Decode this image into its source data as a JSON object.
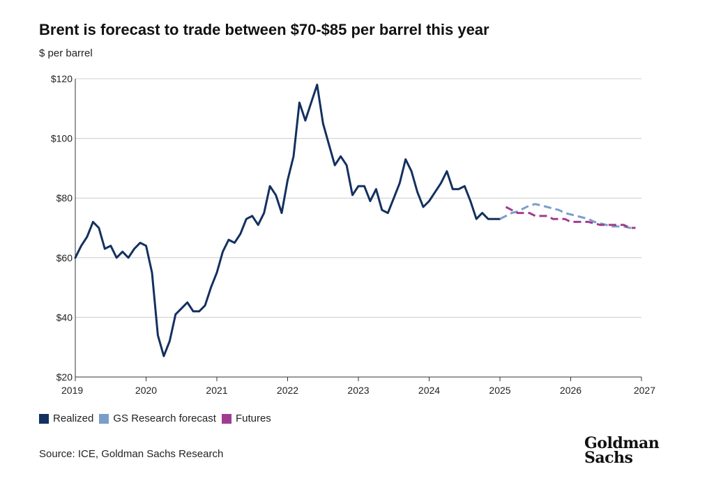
{
  "header": {
    "title": "Brent is forecast to trade between $70-$85 per barrel this year",
    "unit_label": "$ per barrel"
  },
  "footer": {
    "source": "Source: ICE, Goldman Sachs Research",
    "logo_line1": "Goldman",
    "logo_line2": "Sachs"
  },
  "colors": {
    "realized": "#13305f",
    "forecast": "#7b9dc9",
    "futures": "#a03c8f",
    "grid": "#cccccc",
    "axis": "#333333"
  },
  "chart_data": {
    "type": "line",
    "title": "Brent is forecast to trade between $70-$85 per barrel this year",
    "ylabel": "$ per barrel",
    "xlim": [
      2019,
      2027
    ],
    "ylim": [
      20,
      120
    ],
    "x_ticks": [
      2019,
      2020,
      2021,
      2022,
      2023,
      2024,
      2025,
      2026,
      2027
    ],
    "x_tick_labels": [
      "2019",
      "2020",
      "2021",
      "2022",
      "2023",
      "2024",
      "2025",
      "2026",
      "2027"
    ],
    "y_ticks": [
      20,
      40,
      60,
      80,
      100,
      120
    ],
    "y_tick_labels": [
      "$20",
      "$40",
      "$60",
      "$80",
      "$100",
      "$120"
    ],
    "grid": "horizontal",
    "legend": "bottom-left",
    "series": [
      {
        "name": "Realized",
        "style": "solid",
        "color": "#13305f",
        "x": [
          "2019-01",
          "2019-02",
          "2019-03",
          "2019-04",
          "2019-05",
          "2019-06",
          "2019-07",
          "2019-08",
          "2019-09",
          "2019-10",
          "2019-11",
          "2019-12",
          "2020-01",
          "2020-02",
          "2020-03",
          "2020-04",
          "2020-05",
          "2020-06",
          "2020-07",
          "2020-08",
          "2020-09",
          "2020-10",
          "2020-11",
          "2020-12",
          "2021-01",
          "2021-02",
          "2021-03",
          "2021-04",
          "2021-05",
          "2021-06",
          "2021-07",
          "2021-08",
          "2021-09",
          "2021-10",
          "2021-11",
          "2021-12",
          "2022-01",
          "2022-02",
          "2022-03",
          "2022-04",
          "2022-05",
          "2022-06",
          "2022-07",
          "2022-08",
          "2022-09",
          "2022-10",
          "2022-11",
          "2022-12",
          "2023-01",
          "2023-02",
          "2023-03",
          "2023-04",
          "2023-05",
          "2023-06",
          "2023-07",
          "2023-08",
          "2023-09",
          "2023-10",
          "2023-11",
          "2023-12",
          "2024-01",
          "2024-02",
          "2024-03",
          "2024-04",
          "2024-05",
          "2024-06",
          "2024-07",
          "2024-08",
          "2024-09",
          "2024-10",
          "2024-11",
          "2024-12",
          "2025-01"
        ],
        "values": [
          60,
          64,
          67,
          72,
          70,
          63,
          64,
          60,
          62,
          60,
          63,
          65,
          64,
          55,
          34,
          27,
          32,
          41,
          43,
          45,
          42,
          42,
          44,
          50,
          55,
          62,
          66,
          65,
          68,
          73,
          74,
          71,
          75,
          84,
          81,
          75,
          86,
          94,
          112,
          106,
          112,
          118,
          105,
          98,
          91,
          94,
          91,
          81,
          84,
          84,
          79,
          83,
          76,
          75,
          80,
          85,
          93,
          89,
          82,
          77,
          79,
          82,
          85,
          89,
          83,
          83,
          84,
          79,
          73,
          75,
          73,
          73,
          73
        ]
      },
      {
        "name": "GS Research forecast",
        "style": "dashed",
        "color": "#7b9dc9",
        "x": [
          "2025-01",
          "2025-02",
          "2025-03",
          "2025-04",
          "2025-05",
          "2025-06",
          "2025-07",
          "2025-08",
          "2025-09",
          "2025-10",
          "2025-11",
          "2025-12",
          "2026-01",
          "2026-02",
          "2026-03",
          "2026-04",
          "2026-05",
          "2026-06",
          "2026-07",
          "2026-08",
          "2026-09",
          "2026-10",
          "2026-11",
          "2026-12"
        ],
        "values": [
          73,
          74,
          75,
          75.5,
          76.5,
          77.5,
          78,
          77.5,
          77,
          76.5,
          76,
          75,
          74.5,
          74,
          73.5,
          73,
          72,
          71.5,
          71,
          70.5,
          70.5,
          70.5,
          70,
          70
        ]
      },
      {
        "name": "Futures",
        "style": "dashed",
        "color": "#a03c8f",
        "x": [
          "2025-02",
          "2025-03",
          "2025-04",
          "2025-05",
          "2025-06",
          "2025-07",
          "2025-08",
          "2025-09",
          "2025-10",
          "2025-11",
          "2025-12",
          "2026-01",
          "2026-02",
          "2026-03",
          "2026-04",
          "2026-05",
          "2026-06",
          "2026-07",
          "2026-08",
          "2026-09",
          "2026-10",
          "2026-11",
          "2026-12"
        ],
        "values": [
          77,
          76,
          75,
          75,
          75,
          74,
          74,
          74,
          73,
          73,
          73,
          72,
          72,
          72,
          72,
          71.5,
          71,
          71,
          71,
          71,
          71,
          70,
          70
        ]
      }
    ]
  }
}
